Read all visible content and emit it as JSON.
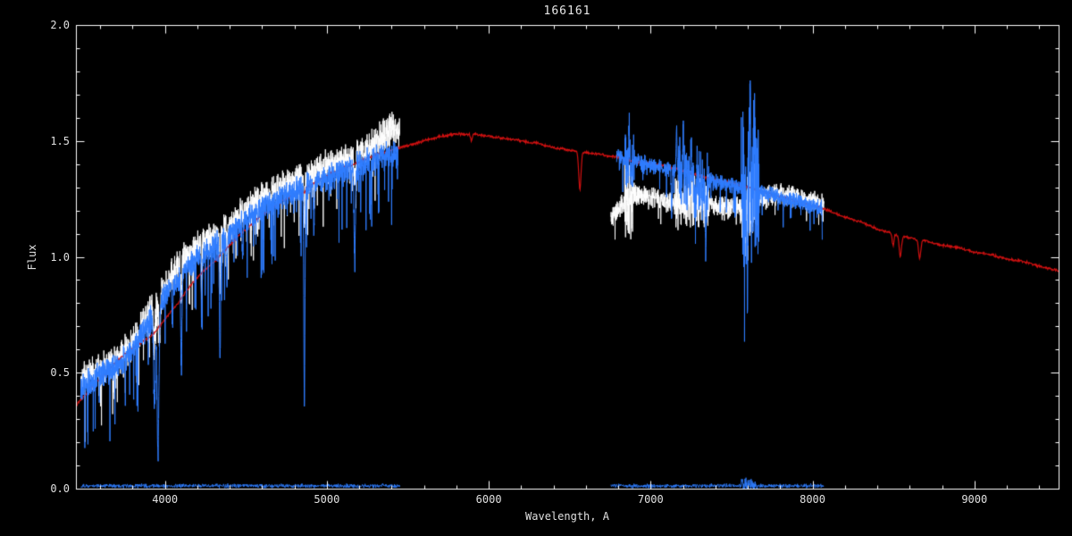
{
  "chart_data": {
    "type": "line",
    "title": "166161",
    "xlabel": "Wavelength, A",
    "ylabel": "Flux",
    "xlim": [
      3450,
      9520
    ],
    "ylim": [
      0.0,
      2.0
    ],
    "grid": false,
    "colors": {
      "background": "#000000",
      "axis": "#ffffff",
      "text": "#e0e0e0",
      "continuum": "#d01010",
      "observed": "#ffffff",
      "fitted": "#2f7dff"
    },
    "xticks": {
      "major": [
        4000,
        5000,
        6000,
        7000,
        8000,
        9000
      ],
      "labels": [
        "4000",
        "5000",
        "6000",
        "7000",
        "8000",
        "9000"
      ],
      "minor_step": 200
    },
    "yticks": {
      "major": [
        0.0,
        0.5,
        1.0,
        1.5,
        2.0
      ],
      "labels": [
        "0.0",
        "0.5",
        "1.0",
        "1.5",
        "2.0"
      ],
      "minor_step": 0.1
    },
    "series": [
      {
        "name": "observed-spectrum-blue-arm",
        "color": "#ffffff",
        "width": 1,
        "alpha": 0.95,
        "seed": 7,
        "step": 0.9,
        "range": [
          3480,
          5450
        ],
        "noise": 0.05,
        "spike_prob": 0.05,
        "spike_depth": 0.22,
        "anchors": [
          [
            3480,
            0.46
          ],
          [
            3560,
            0.5
          ],
          [
            3640,
            0.52
          ],
          [
            3720,
            0.56
          ],
          [
            3800,
            0.63
          ],
          [
            3880,
            0.73
          ],
          [
            3960,
            0.82
          ],
          [
            4040,
            0.92
          ],
          [
            4120,
            0.99
          ],
          [
            4200,
            1.04
          ],
          [
            4280,
            1.07
          ],
          [
            4360,
            1.11
          ],
          [
            4440,
            1.16
          ],
          [
            4520,
            1.21
          ],
          [
            4600,
            1.25
          ],
          [
            4680,
            1.28
          ],
          [
            4760,
            1.31
          ],
          [
            4840,
            1.33
          ],
          [
            4920,
            1.36
          ],
          [
            5000,
            1.39
          ],
          [
            5080,
            1.41
          ],
          [
            5160,
            1.43
          ],
          [
            5240,
            1.46
          ],
          [
            5320,
            1.5
          ],
          [
            5400,
            1.56
          ],
          [
            5450,
            1.53
          ]
        ],
        "lines": [
          [
            3934,
            0.2,
            6
          ],
          [
            3968,
            0.2,
            6
          ],
          [
            4101,
            0.16,
            5
          ],
          [
            4227,
            0.1,
            4
          ],
          [
            4340,
            0.18,
            5
          ],
          [
            4383,
            0.08,
            4
          ],
          [
            4861,
            0.16,
            5
          ],
          [
            5172,
            0.1,
            6
          ]
        ],
        "bursts": []
      },
      {
        "name": "observed-spectrum-red-arm",
        "color": "#ffffff",
        "width": 1,
        "alpha": 0.95,
        "seed": 11,
        "step": 0.9,
        "range": [
          6755,
          8070
        ],
        "noise": 0.03,
        "spike_prob": 0.03,
        "spike_depth": 0.12,
        "anchors": [
          [
            6755,
            1.17
          ],
          [
            6820,
            1.22
          ],
          [
            6860,
            1.28
          ],
          [
            6920,
            1.27
          ],
          [
            7000,
            1.26
          ],
          [
            7080,
            1.24
          ],
          [
            7160,
            1.23
          ],
          [
            7240,
            1.25
          ],
          [
            7320,
            1.24
          ],
          [
            7400,
            1.22
          ],
          [
            7480,
            1.21
          ],
          [
            7560,
            1.22
          ],
          [
            7640,
            1.25
          ],
          [
            7720,
            1.26
          ],
          [
            7800,
            1.27
          ],
          [
            7880,
            1.26
          ],
          [
            7960,
            1.24
          ],
          [
            8070,
            1.23
          ]
        ],
        "lines": [],
        "bursts": [
          [
            6840,
            6890,
            0.1
          ],
          [
            7150,
            7360,
            0.05
          ],
          [
            7560,
            7660,
            0.12
          ]
        ]
      },
      {
        "name": "model-continuum",
        "color": "#d01010",
        "width": 1.2,
        "alpha": 1,
        "seed": 13,
        "step": 3,
        "range": [
          3450,
          9520
        ],
        "noise": 0.004,
        "spike_prob": 0,
        "spike_depth": 0,
        "anchors": [
          [
            3450,
            0.36
          ],
          [
            3550,
            0.44
          ],
          [
            3650,
            0.51
          ],
          [
            3750,
            0.58
          ],
          [
            3850,
            0.63
          ],
          [
            3920,
            0.66
          ],
          [
            4000,
            0.73
          ],
          [
            4080,
            0.8
          ],
          [
            4160,
            0.88
          ],
          [
            4240,
            0.94
          ],
          [
            4320,
            0.99
          ],
          [
            4400,
            1.05
          ],
          [
            4500,
            1.12
          ],
          [
            4600,
            1.18
          ],
          [
            4700,
            1.23
          ],
          [
            4800,
            1.27
          ],
          [
            4900,
            1.31
          ],
          [
            5000,
            1.35
          ],
          [
            5100,
            1.38
          ],
          [
            5200,
            1.41
          ],
          [
            5300,
            1.44
          ],
          [
            5400,
            1.46
          ],
          [
            5500,
            1.48
          ],
          [
            5600,
            1.5
          ],
          [
            5700,
            1.52
          ],
          [
            5800,
            1.53
          ],
          [
            5900,
            1.53
          ],
          [
            6000,
            1.52
          ],
          [
            6100,
            1.51
          ],
          [
            6200,
            1.5
          ],
          [
            6300,
            1.49
          ],
          [
            6400,
            1.47
          ],
          [
            6500,
            1.46
          ],
          [
            6600,
            1.45
          ],
          [
            6700,
            1.44
          ],
          [
            6800,
            1.43
          ],
          [
            6900,
            1.41
          ],
          [
            7000,
            1.4
          ],
          [
            7100,
            1.39
          ],
          [
            7200,
            1.37
          ],
          [
            7300,
            1.35
          ],
          [
            7400,
            1.33
          ],
          [
            7500,
            1.32
          ],
          [
            7600,
            1.3
          ],
          [
            7700,
            1.28
          ],
          [
            7800,
            1.26
          ],
          [
            7900,
            1.24
          ],
          [
            8000,
            1.22
          ],
          [
            8100,
            1.2
          ],
          [
            8200,
            1.17
          ],
          [
            8300,
            1.15
          ],
          [
            8400,
            1.12
          ],
          [
            8500,
            1.1
          ],
          [
            8600,
            1.08
          ],
          [
            8700,
            1.07
          ],
          [
            8800,
            1.05
          ],
          [
            8900,
            1.04
          ],
          [
            9000,
            1.02
          ],
          [
            9100,
            1.01
          ],
          [
            9200,
            0.99
          ],
          [
            9300,
            0.98
          ],
          [
            9400,
            0.96
          ],
          [
            9520,
            0.94
          ]
        ],
        "lines": [
          [
            4861,
            0.02,
            8
          ],
          [
            5893,
            0.03,
            8
          ],
          [
            6563,
            0.16,
            10
          ],
          [
            8498,
            0.05,
            8
          ],
          [
            8542,
            0.09,
            10
          ],
          [
            8662,
            0.08,
            10
          ]
        ],
        "bursts": []
      },
      {
        "name": "fitted-spectrum-blue-arm",
        "color": "#2f7dff",
        "width": 1,
        "alpha": 1,
        "seed": 17,
        "step": 1.0,
        "range": [
          3480,
          5440
        ],
        "noise": 0.04,
        "spike_prob": 0.05,
        "spike_depth": 0.3,
        "anchors": [
          [
            3480,
            0.44
          ],
          [
            3560,
            0.47
          ],
          [
            3640,
            0.5
          ],
          [
            3720,
            0.54
          ],
          [
            3800,
            0.6
          ],
          [
            3880,
            0.69
          ],
          [
            3960,
            0.78
          ],
          [
            4040,
            0.87
          ],
          [
            4120,
            0.94
          ],
          [
            4200,
            0.99
          ],
          [
            4280,
            1.03
          ],
          [
            4360,
            1.07
          ],
          [
            4440,
            1.12
          ],
          [
            4520,
            1.17
          ],
          [
            4600,
            1.21
          ],
          [
            4680,
            1.24
          ],
          [
            4760,
            1.27
          ],
          [
            4840,
            1.29
          ],
          [
            4920,
            1.32
          ],
          [
            5000,
            1.34
          ],
          [
            5080,
            1.36
          ],
          [
            5160,
            1.38
          ],
          [
            5240,
            1.41
          ],
          [
            5320,
            1.43
          ],
          [
            5440,
            1.45
          ]
        ],
        "lines": [
          [
            3935,
            0.4,
            7
          ],
          [
            3957,
            0.62,
            8
          ],
          [
            4046,
            0.2,
            4
          ],
          [
            4101,
            0.4,
            5
          ],
          [
            4227,
            0.3,
            4
          ],
          [
            4340,
            0.5,
            5
          ],
          [
            4383,
            0.22,
            4
          ],
          [
            4481,
            0.18,
            4
          ],
          [
            4861,
            0.9,
            5
          ],
          [
            4920,
            0.22,
            4
          ],
          [
            5172,
            0.38,
            6
          ],
          [
            5270,
            0.25,
            4
          ]
        ],
        "bursts": []
      },
      {
        "name": "fitted-spectrum-red-arm",
        "color": "#2f7dff",
        "width": 1,
        "alpha": 1,
        "seed": 23,
        "step": 1.0,
        "range": [
          6790,
          8060
        ],
        "noise": 0.022,
        "spike_prob": 0.03,
        "spike_depth": 0.15,
        "anchors": [
          [
            6790,
            1.44
          ],
          [
            6860,
            1.42
          ],
          [
            6940,
            1.41
          ],
          [
            7020,
            1.39
          ],
          [
            7100,
            1.38
          ],
          [
            7180,
            1.37
          ],
          [
            7260,
            1.35
          ],
          [
            7340,
            1.34
          ],
          [
            7420,
            1.32
          ],
          [
            7500,
            1.31
          ],
          [
            7580,
            1.3
          ],
          [
            7660,
            1.28
          ],
          [
            7740,
            1.27
          ],
          [
            7820,
            1.25
          ],
          [
            7900,
            1.24
          ],
          [
            7980,
            1.22
          ],
          [
            8060,
            1.21
          ]
        ],
        "lines": [
          [
            6867,
            -0.12,
            4
          ],
          [
            7130,
            0.2,
            4
          ],
          [
            7160,
            -0.18,
            4
          ],
          [
            7200,
            -0.15,
            4
          ],
          [
            7250,
            -0.2,
            4
          ],
          [
            7275,
            0.15,
            5
          ],
          [
            7340,
            0.3,
            5
          ],
          [
            7580,
            0.25,
            4
          ],
          [
            7594,
            0.3,
            8
          ],
          [
            7615,
            -0.38,
            4
          ],
          [
            7640,
            -0.25,
            3
          ]
        ],
        "bursts": [
          [
            6840,
            6900,
            0.08
          ],
          [
            7170,
            7360,
            0.07
          ],
          [
            7560,
            7670,
            0.22
          ]
        ]
      },
      {
        "name": "error-spectrum-blue-arm",
        "color": "#2f7dff",
        "width": 1,
        "alpha": 0.9,
        "seed": 29,
        "step": 2,
        "range": [
          3480,
          5450
        ],
        "noise": 0.006,
        "spike_prob": 0,
        "spike_depth": 0,
        "anchors": [
          [
            3480,
            0.012
          ],
          [
            5450,
            0.012
          ]
        ],
        "lines": [],
        "bursts": []
      },
      {
        "name": "error-spectrum-red-arm",
        "color": "#2f7dff",
        "width": 1,
        "alpha": 0.9,
        "seed": 31,
        "step": 2,
        "range": [
          6755,
          8070
        ],
        "noise": 0.006,
        "spike_prob": 0,
        "spike_depth": 0,
        "anchors": [
          [
            6755,
            0.012
          ],
          [
            8070,
            0.012
          ]
        ],
        "lines": [],
        "bursts": [
          [
            7560,
            7660,
            0.02
          ]
        ]
      }
    ]
  }
}
